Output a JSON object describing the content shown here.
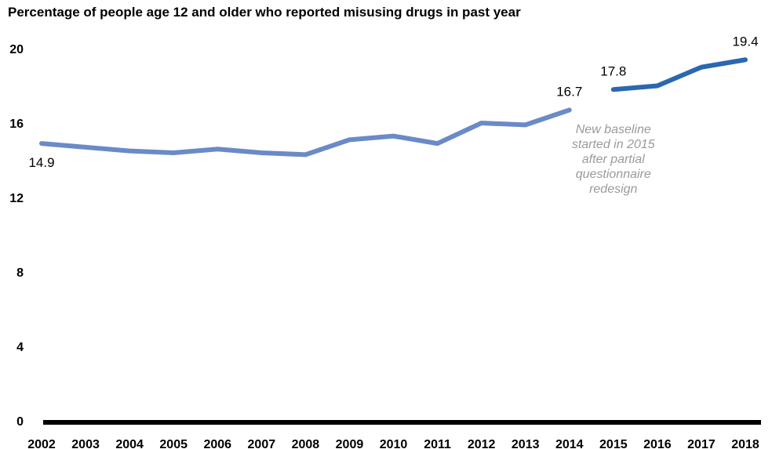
{
  "chart_data": {
    "type": "line",
    "title": "Percentage of people age 12 and older who reported misusing drugs in past year",
    "x": [
      "2002",
      "2003",
      "2004",
      "2005",
      "2006",
      "2007",
      "2008",
      "2009",
      "2010",
      "2011",
      "2012",
      "2013",
      "2014",
      "2015",
      "2016",
      "2017",
      "2018"
    ],
    "ylim": [
      0,
      20
    ],
    "yticks": [
      "0",
      "4",
      "8",
      "12",
      "16",
      "20"
    ],
    "grid": false,
    "series": [
      {
        "x": [
          "2002",
          "2003",
          "2004",
          "2005",
          "2006",
          "2007",
          "2008",
          "2009",
          "2010",
          "2011",
          "2012",
          "2013",
          "2014"
        ],
        "values": [
          14.9,
          14.7,
          14.5,
          14.4,
          14.6,
          14.4,
          14.3,
          15.1,
          15.3,
          14.9,
          16.0,
          15.9,
          16.7
        ],
        "color": "#6a8ac8"
      },
      {
        "x": [
          "2015",
          "2016",
          "2017",
          "2018"
        ],
        "values": [
          17.8,
          18.0,
          19.0,
          19.4
        ],
        "color": "#2a68b0"
      }
    ],
    "data_labels": [
      {
        "x": "2002",
        "text": "14.9"
      },
      {
        "x": "2014",
        "text": "16.7"
      },
      {
        "x": "2015",
        "text": "17.8"
      },
      {
        "x": "2018",
        "text": "19.4"
      }
    ],
    "annotation": [
      "New baseline",
      "started in 2015",
      "after partial",
      "questionnaire",
      "redesign"
    ],
    "annotation_color": "#9a9a9a"
  }
}
